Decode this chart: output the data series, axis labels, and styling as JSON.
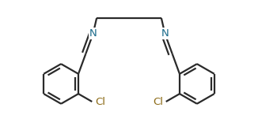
{
  "background": "#ffffff",
  "line_color": "#2a2a2a",
  "N_color": "#1a6b8a",
  "Cl_color": "#8b6914",
  "line_width": 1.6,
  "fig_width": 3.26,
  "fig_height": 1.46,
  "dpi": 100,
  "N_label": "N",
  "Cl_label": "Cl",
  "xlim": [
    -1.7,
    1.7
  ],
  "ylim": [
    -1.05,
    0.55
  ]
}
